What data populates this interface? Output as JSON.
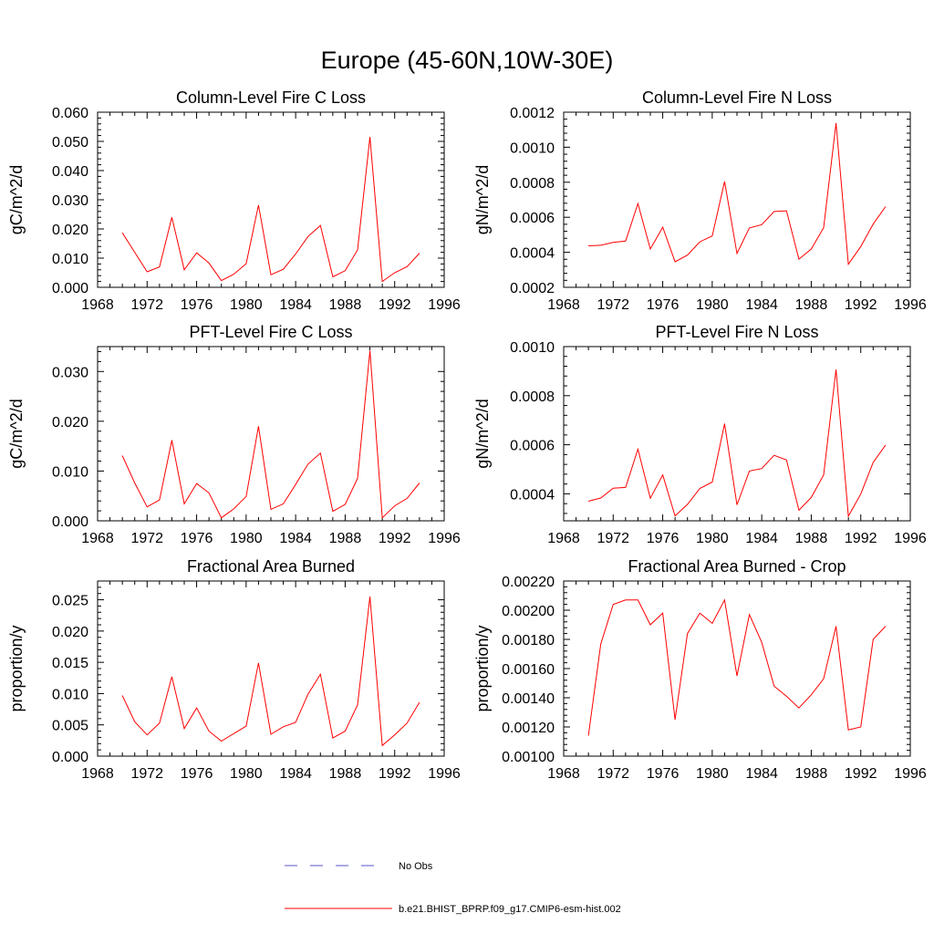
{
  "figure": {
    "title": "Europe (45-60N,10W-30E)",
    "line_color": "#ff0000",
    "obs_color": "#5555cc"
  },
  "legend": {
    "obs_label": "No Obs",
    "model_label": "b.e21.BHIST_BPRP.f09_g17.CMIP6-esm-hist.002"
  },
  "chart_data": [
    {
      "type": "line",
      "title": "Column-Level Fire C Loss",
      "ylabel": "gC/m^2/d",
      "xlim": [
        1968,
        1996
      ],
      "xticks": [
        1968,
        1972,
        1976,
        1980,
        1984,
        1988,
        1992,
        1996
      ],
      "ylim": [
        0,
        0.06
      ],
      "yticks": [
        "0.000",
        "0.010",
        "0.020",
        "0.030",
        "0.040",
        "0.050",
        "0.060"
      ],
      "ytick_values": [
        0,
        0.01,
        0.02,
        0.03,
        0.04,
        0.05,
        0.06
      ],
      "x": [
        1970,
        1971,
        1972,
        1973,
        1974,
        1975,
        1976,
        1977,
        1978,
        1979,
        1980,
        1981,
        1982,
        1983,
        1984,
        1985,
        1986,
        1987,
        1988,
        1989,
        1990,
        1991,
        1992,
        1993,
        1994
      ],
      "values": [
        0.0187,
        0.012,
        0.0053,
        0.007,
        0.024,
        0.006,
        0.0118,
        0.0083,
        0.0023,
        0.0045,
        0.0081,
        0.0282,
        0.0043,
        0.0062,
        0.0114,
        0.0174,
        0.0212,
        0.0036,
        0.0057,
        0.0128,
        0.0515,
        0.002,
        0.005,
        0.0071,
        0.0117
      ]
    },
    {
      "type": "line",
      "title": "Column-Level Fire N Loss",
      "ylabel": "gN/m^2/d",
      "xlim": [
        1968,
        1996
      ],
      "xticks": [
        1968,
        1972,
        1976,
        1980,
        1984,
        1988,
        1992,
        1996
      ],
      "ylim": [
        0.0002,
        0.0012
      ],
      "yticks": [
        "0.0002",
        "0.0004",
        "0.0006",
        "0.0008",
        "0.0010",
        "0.0012"
      ],
      "ytick_values": [
        0.0002,
        0.0004,
        0.0006,
        0.0008,
        0.001,
        0.0012
      ],
      "x": [
        1970,
        1971,
        1972,
        1973,
        1974,
        1975,
        1976,
        1977,
        1978,
        1979,
        1980,
        1981,
        1982,
        1983,
        1984,
        1985,
        1986,
        1987,
        1988,
        1989,
        1990,
        1991,
        1992,
        1993,
        1994
      ],
      "values": [
        0.000437,
        0.00044,
        0.000456,
        0.000464,
        0.000678,
        0.000419,
        0.000543,
        0.000346,
        0.000384,
        0.00046,
        0.000494,
        0.000804,
        0.000393,
        0.000539,
        0.000558,
        0.000633,
        0.000637,
        0.000361,
        0.000419,
        0.00054,
        0.001138,
        0.000332,
        0.000433,
        0.000561,
        0.000661
      ]
    },
    {
      "type": "line",
      "title": "PFT-Level Fire C Loss",
      "ylabel": "gC/m^2/d",
      "xlim": [
        1968,
        1996
      ],
      "xticks": [
        1968,
        1972,
        1976,
        1980,
        1984,
        1988,
        1992,
        1996
      ],
      "ylim": [
        0,
        0.035
      ],
      "yticks": [
        "0.000",
        "0.010",
        "0.020",
        "0.030"
      ],
      "ytick_values": [
        0,
        0.01,
        0.02,
        0.03
      ],
      "x": [
        1970,
        1971,
        1972,
        1973,
        1974,
        1975,
        1976,
        1977,
        1978,
        1979,
        1980,
        1981,
        1982,
        1983,
        1984,
        1985,
        1986,
        1987,
        1988,
        1989,
        1990,
        1991,
        1992,
        1993,
        1994
      ],
      "values": [
        0.0131,
        0.0076,
        0.0028,
        0.0042,
        0.0162,
        0.0034,
        0.0075,
        0.0056,
        0.0006,
        0.0024,
        0.0049,
        0.019,
        0.0023,
        0.0034,
        0.0073,
        0.0114,
        0.0136,
        0.0019,
        0.0033,
        0.0085,
        0.0342,
        0.0006,
        0.003,
        0.0045,
        0.0076
      ]
    },
    {
      "type": "line",
      "title": "PFT-Level Fire N Loss",
      "ylabel": "gN/m^2/d",
      "xlim": [
        1968,
        1996
      ],
      "xticks": [
        1968,
        1972,
        1976,
        1980,
        1984,
        1988,
        1992,
        1996
      ],
      "ylim": [
        0.00029,
        0.001
      ],
      "yticks": [
        "0.0004",
        "0.0006",
        "0.0008",
        "0.0010"
      ],
      "ytick_values": [
        0.0004,
        0.0006,
        0.0008,
        0.001
      ],
      "x": [
        1970,
        1971,
        1972,
        1973,
        1974,
        1975,
        1976,
        1977,
        1978,
        1979,
        1980,
        1981,
        1982,
        1983,
        1984,
        1985,
        1986,
        1987,
        1988,
        1989,
        1990,
        1991,
        1992,
        1993,
        1994
      ],
      "values": [
        0.00037,
        0.000383,
        0.000423,
        0.000426,
        0.000582,
        0.000382,
        0.000477,
        0.00031,
        0.000357,
        0.000422,
        0.000448,
        0.000686,
        0.000355,
        0.000493,
        0.000503,
        0.000557,
        0.000538,
        0.000333,
        0.000385,
        0.000477,
        0.000907,
        0.000309,
        0.000399,
        0.000528,
        0.000599
      ]
    },
    {
      "type": "line",
      "title": "Fractional Area Burned",
      "ylabel": "proportion/y",
      "xlim": [
        1968,
        1996
      ],
      "xticks": [
        1968,
        1972,
        1976,
        1980,
        1984,
        1988,
        1992,
        1996
      ],
      "ylim": [
        0,
        0.028
      ],
      "yticks": [
        "0.000",
        "0.005",
        "0.010",
        "0.015",
        "0.020",
        "0.025"
      ],
      "ytick_values": [
        0,
        0.005,
        0.01,
        0.015,
        0.02,
        0.025
      ],
      "x": [
        1970,
        1971,
        1972,
        1973,
        1974,
        1975,
        1976,
        1977,
        1978,
        1979,
        1980,
        1981,
        1982,
        1983,
        1984,
        1985,
        1986,
        1987,
        1988,
        1989,
        1990,
        1991,
        1992,
        1993,
        1994
      ],
      "values": [
        0.0097,
        0.0055,
        0.0034,
        0.0053,
        0.0127,
        0.0044,
        0.0077,
        0.004,
        0.0024,
        0.0036,
        0.0048,
        0.0149,
        0.0035,
        0.0047,
        0.0054,
        0.0099,
        0.0131,
        0.0029,
        0.004,
        0.0082,
        0.0255,
        0.0017,
        0.0034,
        0.0053,
        0.0086
      ]
    },
    {
      "type": "line",
      "title": "Fractional Area Burned - Crop",
      "ylabel": "proportion/y",
      "xlim": [
        1968,
        1996
      ],
      "xticks": [
        1968,
        1972,
        1976,
        1980,
        1984,
        1988,
        1992,
        1996
      ],
      "ylim": [
        0.001,
        0.0022
      ],
      "yticks": [
        "0.00100",
        "0.00120",
        "0.00140",
        "0.00160",
        "0.00180",
        "0.00200",
        "0.00220"
      ],
      "ytick_values": [
        0.001,
        0.0012,
        0.0014,
        0.0016,
        0.0018,
        0.002,
        0.0022
      ],
      "x": [
        1970,
        1971,
        1972,
        1973,
        1974,
        1975,
        1976,
        1977,
        1978,
        1979,
        1980,
        1981,
        1982,
        1983,
        1984,
        1985,
        1986,
        1987,
        1988,
        1989,
        1990,
        1991,
        1992,
        1993,
        1994
      ],
      "values": [
        0.00114,
        0.00177,
        0.00204,
        0.00207,
        0.00207,
        0.0019,
        0.00198,
        0.00125,
        0.00184,
        0.00198,
        0.00191,
        0.00207,
        0.00155,
        0.00197,
        0.00178,
        0.00148,
        0.00141,
        0.00133,
        0.00142,
        0.00153,
        0.00189,
        0.00118,
        0.0012,
        0.0018,
        0.00189
      ]
    }
  ]
}
